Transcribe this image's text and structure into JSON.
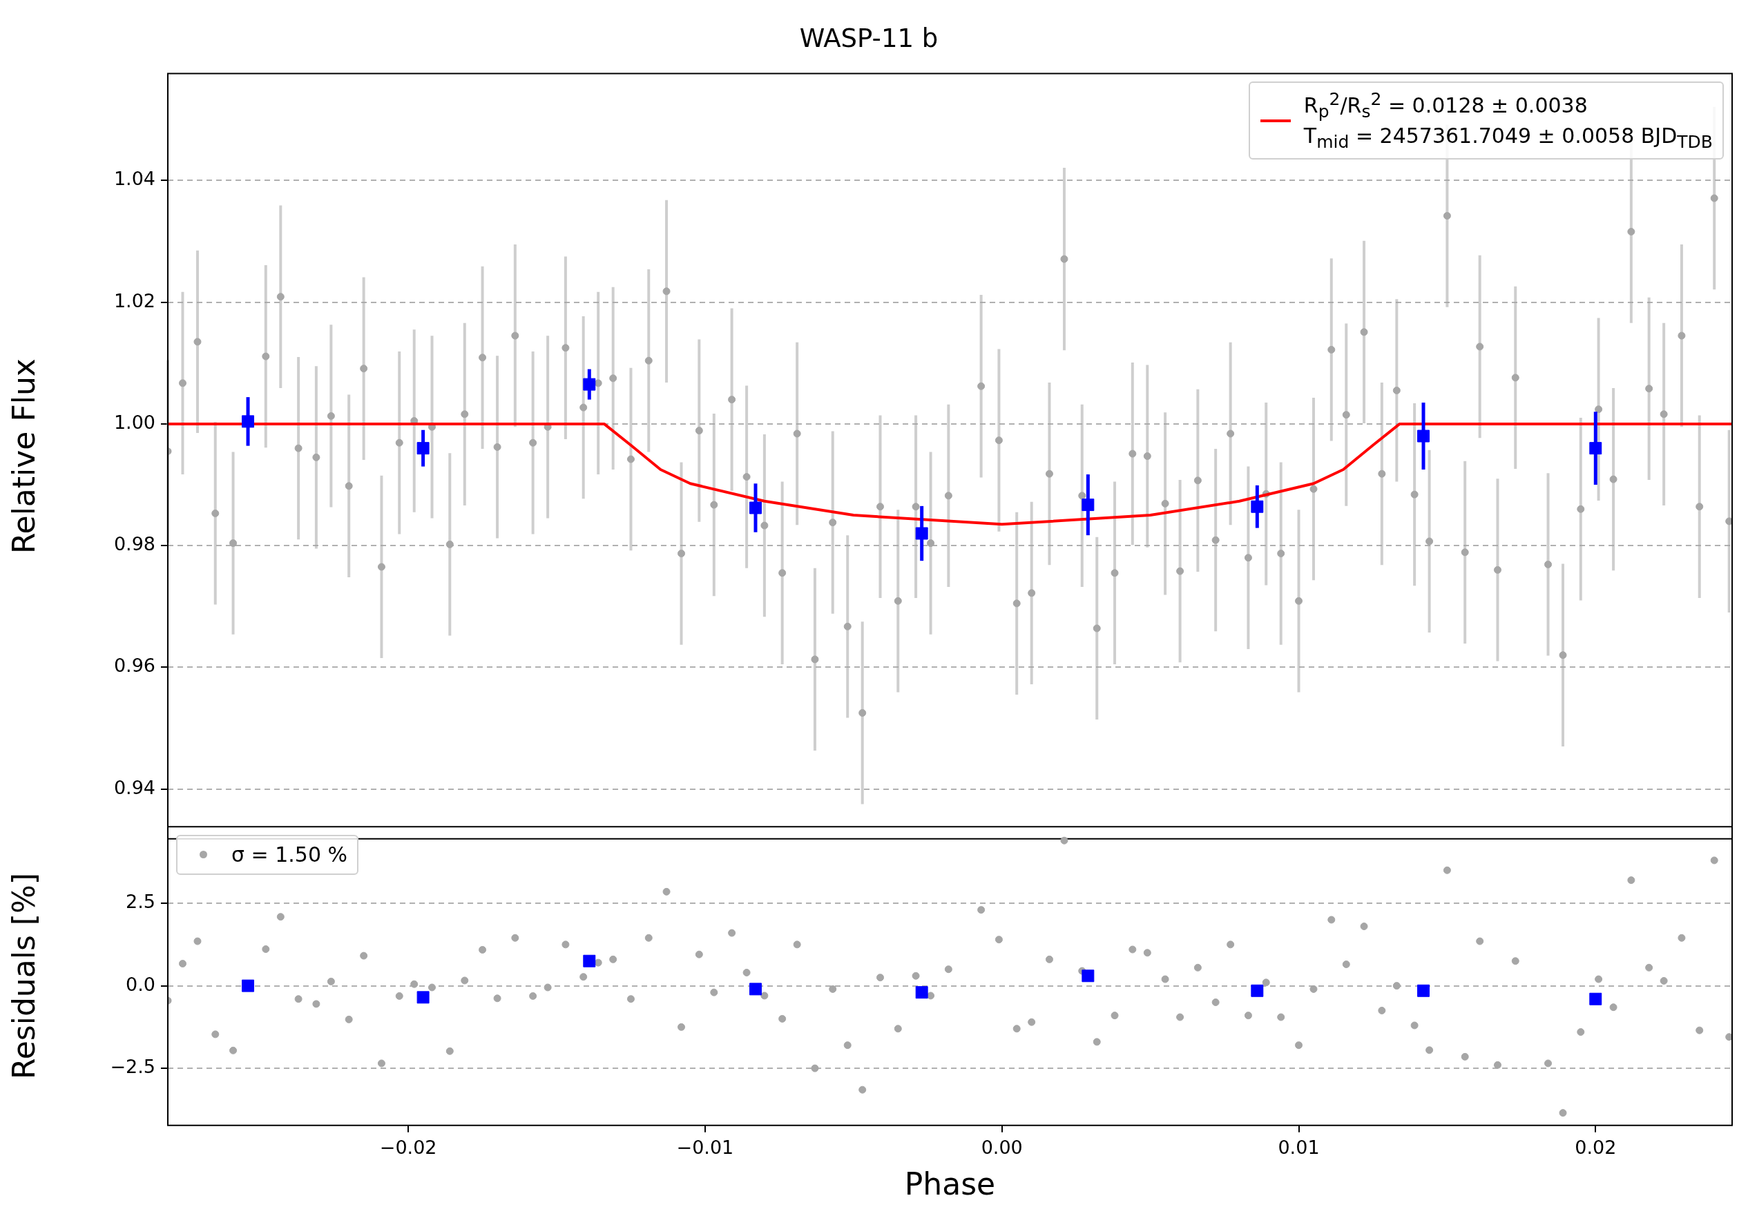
{
  "chart_data": [
    {
      "type": "scatter",
      "title": "WASP-11 b",
      "ylabel": "Relative Flux",
      "xlim": [
        -0.0281,
        0.0246
      ],
      "ylim": [
        0.9318,
        1.0576
      ],
      "yticks": [
        {
          "value": 0.94,
          "label": "0.94"
        },
        {
          "value": 0.96,
          "label": "0.96"
        },
        {
          "value": 0.98,
          "label": "0.98"
        },
        {
          "value": 1.0,
          "label": "1.00"
        },
        {
          "value": 1.02,
          "label": "1.02"
        },
        {
          "value": 1.04,
          "label": "1.04"
        }
      ],
      "grid": "y",
      "legend": "top right",
      "tick_labels": "y",
      "series": [
        {
          "type": "scatter",
          "color": "#a6a6a6",
          "marker": "circle",
          "x": [
            -0.0281,
            -0.0276,
            -0.0271,
            -0.0265,
            -0.0259,
            -0.0248,
            -0.0243,
            -0.0237,
            -0.0231,
            -0.0226,
            -0.022,
            -0.0215,
            -0.0209,
            -0.0203,
            -0.0198,
            -0.0192,
            -0.0186,
            -0.0181,
            -0.0175,
            -0.017,
            -0.0164,
            -0.0158,
            -0.0153,
            -0.0147,
            -0.0141,
            -0.0136,
            -0.0131,
            -0.0125,
            -0.0119,
            -0.0113,
            -0.0108,
            -0.0102,
            -0.0097,
            -0.0091,
            -0.0086,
            -0.008,
            -0.0074,
            -0.0069,
            -0.0063,
            -0.0057,
            -0.0052,
            -0.0047,
            -0.0041,
            -0.0035,
            -0.0029,
            -0.0024,
            -0.0018,
            -0.0007,
            -0.0001,
            0.0005,
            0.001,
            0.0016,
            0.0021,
            0.0027,
            0.0032,
            0.0038,
            0.0044,
            0.0049,
            0.0055,
            0.006,
            0.0066,
            0.0072,
            0.0077,
            0.0083,
            0.0089,
            0.0094,
            0.01,
            0.0105,
            0.0111,
            0.0116,
            0.0122,
            0.0128,
            0.0133,
            0.0139,
            0.0144,
            0.015,
            0.0156,
            0.0161,
            0.0167,
            0.0173,
            0.0184,
            0.0189,
            0.0195,
            0.0201,
            0.0206,
            0.0212,
            0.0218,
            0.0223,
            0.0229,
            0.0235,
            0.024,
            0.0245
          ],
          "values": [
            0.9955,
            1.0067,
            1.0135,
            0.9853,
            0.9804,
            1.0111,
            1.0209,
            0.996,
            0.9945,
            1.0013,
            0.9898,
            1.0091,
            0.9765,
            0.9969,
            1.0005,
            0.9995,
            0.9802,
            1.0016,
            1.0109,
            0.9962,
            1.0145,
            0.9969,
            0.9995,
            1.0125,
            1.0027,
            1.0067,
            1.0075,
            0.9942,
            1.0104,
            1.0218,
            0.9787,
            0.9989,
            0.9867,
            1.004,
            0.9913,
            0.9833,
            0.9755,
            0.9984,
            0.9613,
            0.9838,
            0.9667,
            0.9525,
            0.9864,
            0.9709,
            0.9864,
            0.9804,
            0.9882,
            1.0062,
            0.9973,
            0.9705,
            0.9722,
            0.9918,
            1.0271,
            0.9882,
            0.9664,
            0.9755,
            0.9951,
            0.9947,
            0.9869,
            0.9758,
            0.9907,
            0.9809,
            0.9984,
            0.978,
            0.9885,
            0.9787,
            0.9709,
            0.9893,
            1.0122,
            1.0015,
            1.0151,
            0.9918,
            1.0055,
            0.9884,
            0.9807,
            1.0342,
            0.9789,
            1.0127,
            0.976,
            1.0076,
            0.9769,
            0.962,
            0.986,
            1.0024,
            0.9909,
            1.0316,
            1.0058,
            1.0016,
            1.0145,
            0.9864,
            1.0371,
            0.984
          ],
          "errors": [
            0.015,
            0.015,
            0.015,
            0.015,
            0.015,
            0.015,
            0.015,
            0.015,
            0.015,
            0.015,
            0.015,
            0.015,
            0.015,
            0.015,
            0.015,
            0.015,
            0.015,
            0.015,
            0.015,
            0.015,
            0.015,
            0.015,
            0.015,
            0.015,
            0.015,
            0.015,
            0.015,
            0.015,
            0.015,
            0.015,
            0.015,
            0.015,
            0.015,
            0.015,
            0.015,
            0.015,
            0.015,
            0.015,
            0.015,
            0.015,
            0.015,
            0.015,
            0.015,
            0.015,
            0.015,
            0.015,
            0.015,
            0.015,
            0.015,
            0.015,
            0.015,
            0.015,
            0.015,
            0.015,
            0.015,
            0.015,
            0.015,
            0.015,
            0.015,
            0.015,
            0.015,
            0.015,
            0.015,
            0.015,
            0.015,
            0.015,
            0.015,
            0.015,
            0.015,
            0.015,
            0.015,
            0.015,
            0.015,
            0.015,
            0.015,
            0.015,
            0.015,
            0.015,
            0.015,
            0.015,
            0.015,
            0.015,
            0.015,
            0.015,
            0.015,
            0.015,
            0.015,
            0.015,
            0.015,
            0.015,
            0.015,
            0.015
          ]
        },
        {
          "type": "line",
          "name": "R$_{p}$$^{2}$/R$_{s}$$^{2}$ = 0.0128 ± 0.0038\nT$_{mid}$ = 2457361.7049 ± 0.0058 BJD$_{TDB}$",
          "color": "#ff0000",
          "line_style": "solid",
          "x": [
            -0.0281,
            -0.0134,
            -0.0125,
            -0.0115,
            -0.0105,
            -0.008,
            -0.005,
            0,
            0.005,
            0.008,
            0.0105,
            0.0115,
            0.0125,
            0.0134,
            0.0246
          ],
          "values": [
            1.0,
            1.0,
            0.9965,
            0.9925,
            0.9902,
            0.9873,
            0.985,
            0.9835,
            0.985,
            0.9873,
            0.9902,
            0.9925,
            0.9965,
            1.0,
            1.0
          ]
        },
        {
          "type": "scatter",
          "color": "#0000ff",
          "marker": "square",
          "x": [
            -0.0254,
            -0.0195,
            -0.0139,
            -0.0083,
            -0.0027,
            0.0029,
            0.0086,
            0.0142,
            0.02
          ],
          "values": [
            1.0004,
            0.996,
            1.0065,
            0.9862,
            0.982,
            0.9867,
            0.9864,
            0.998,
            0.996
          ],
          "errors": [
            0.004,
            0.003,
            0.0025,
            0.004,
            0.0045,
            0.005,
            0.0035,
            0.0055,
            0.006
          ]
        }
      ]
    },
    {
      "type": "scatter",
      "xlabel": "Phase",
      "ylabel": "Residuals [%]",
      "xlim": [
        -0.0281,
        0.0246
      ],
      "ylim": [
        -4.23,
        4.82
      ],
      "xticks": [
        {
          "value": -0.02,
          "label": "−0.02"
        },
        {
          "value": -0.01,
          "label": "−0.01"
        },
        {
          "value": 0,
          "label": "0.00"
        },
        {
          "value": 0.01,
          "label": "0.01"
        },
        {
          "value": 0.02,
          "label": "0.02"
        }
      ],
      "yticks": [
        {
          "value": -2.5,
          "label": "−2.5"
        },
        {
          "value": 0,
          "label": "0.0"
        },
        {
          "value": 2.5,
          "label": "2.5"
        }
      ],
      "grid": "y",
      "legend": "top left",
      "series": [
        {
          "type": "scatter",
          "name": "σ = 1.50 %",
          "color": "#a6a6a6",
          "marker": "circle",
          "x": [
            -0.0281,
            -0.0276,
            -0.0271,
            -0.0265,
            -0.0259,
            -0.0248,
            -0.0243,
            -0.0237,
            -0.0231,
            -0.0226,
            -0.022,
            -0.0215,
            -0.0209,
            -0.0203,
            -0.0198,
            -0.0192,
            -0.0186,
            -0.0181,
            -0.0175,
            -0.017,
            -0.0164,
            -0.0158,
            -0.0153,
            -0.0147,
            -0.0141,
            -0.0136,
            -0.0131,
            -0.0125,
            -0.0119,
            -0.0113,
            -0.0108,
            -0.0102,
            -0.0097,
            -0.0091,
            -0.0086,
            -0.008,
            -0.0074,
            -0.0069,
            -0.0063,
            -0.0057,
            -0.0052,
            -0.0047,
            -0.0041,
            -0.0035,
            -0.0029,
            -0.0024,
            -0.0018,
            -0.0007,
            -0.0001,
            0.0005,
            0.001,
            0.0016,
            0.0021,
            0.0027,
            0.0032,
            0.0038,
            0.0044,
            0.0049,
            0.0055,
            0.006,
            0.0066,
            0.0072,
            0.0077,
            0.0083,
            0.0089,
            0.0094,
            0.01,
            0.0105,
            0.0111,
            0.0116,
            0.0122,
            0.0128,
            0.0133,
            0.0139,
            0.0144,
            0.015,
            0.0156,
            0.0161,
            0.0167,
            0.0173,
            0.0184,
            0.0189,
            0.0195,
            0.0201,
            0.0206,
            0.0212,
            0.0218,
            0.0223,
            0.0229,
            0.0235,
            0.024,
            0.0245
          ],
          "values": [
            -0.45,
            0.67,
            1.35,
            -1.47,
            -1.96,
            1.11,
            2.09,
            -0.4,
            -0.55,
            0.13,
            -1.02,
            0.91,
            -2.35,
            -0.31,
            0.05,
            -0.05,
            -1.98,
            0.16,
            1.09,
            -0.38,
            1.45,
            -0.31,
            -0.05,
            1.25,
            0.27,
            0.7,
            0.8,
            -0.4,
            1.45,
            2.85,
            -1.25,
            0.95,
            -0.2,
            1.6,
            0.4,
            -0.3,
            -1.0,
            1.25,
            -2.5,
            -0.1,
            -1.8,
            -3.15,
            0.25,
            -1.3,
            0.3,
            -0.3,
            0.5,
            2.3,
            1.4,
            -1.3,
            -1.1,
            0.8,
            4.4,
            0.45,
            -1.7,
            -0.9,
            1.1,
            1.0,
            0.2,
            -0.95,
            0.55,
            -0.5,
            1.25,
            -0.9,
            0.1,
            -0.95,
            -1.8,
            -0.1,
            2.0,
            0.65,
            1.8,
            -0.75,
            0.0,
            -1.2,
            -1.95,
            3.5,
            -2.15,
            1.35,
            -2.4,
            0.75,
            -2.35,
            -3.85,
            -1.4,
            0.2,
            -0.65,
            3.2,
            0.55,
            0.15,
            1.45,
            -1.35,
            3.8,
            -1.55
          ]
        },
        {
          "type": "scatter",
          "color": "#0000ff",
          "marker": "square",
          "x": [
            -0.0254,
            -0.0195,
            -0.0139,
            -0.0083,
            -0.0027,
            0.0029,
            0.0086,
            0.0142,
            0.02
          ],
          "values": [
            0.0,
            -0.35,
            0.75,
            -0.1,
            -0.2,
            0.3,
            -0.15,
            -0.15,
            -0.4
          ]
        }
      ]
    }
  ]
}
